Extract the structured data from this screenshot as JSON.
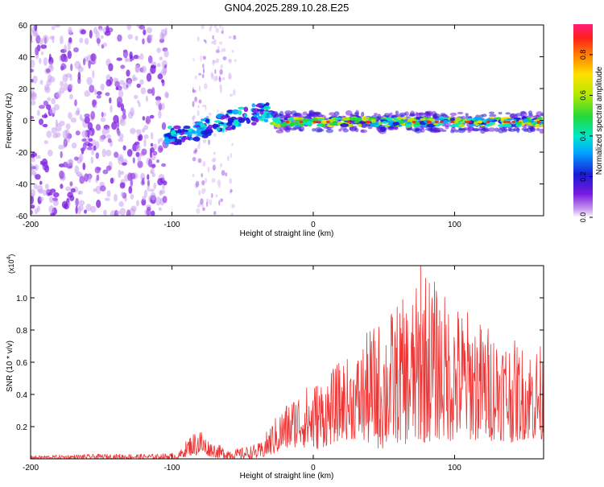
{
  "figure_title": "GN04.2025.289.10.28.E25",
  "colors": {
    "signal_line": "#ee3333",
    "axes": "#000000",
    "background": "#ffffff"
  },
  "chart_data": [
    {
      "type": "heatmap",
      "title": "GN04.2025.289.10.28.E25",
      "xlabel": "Height of straight line (km)",
      "ylabel": "Frequency (Hz)",
      "xlim": [
        -200,
        163
      ],
      "ylim": [
        -60,
        60
      ],
      "x_ticks": [
        -200,
        -100,
        0,
        100
      ],
      "y_ticks": [
        -60,
        -40,
        -20,
        0,
        20,
        40,
        60
      ],
      "tick_labels_x": [
        "-200",
        "-100",
        "0",
        "100"
      ],
      "tick_labels_y": [
        "-60",
        "-40",
        "-20",
        "0",
        "20",
        "40",
        "60"
      ],
      "colorbar": {
        "label": "Normalized spectral amplitude",
        "range": [
          0,
          0.95
        ],
        "ticks": [
          0,
          0.2,
          0.4,
          0.6,
          0.8
        ],
        "tick_labels": [
          "0.0",
          "0.2",
          "0.4",
          "0.6",
          "0.8"
        ]
      },
      "regions": [
        {
          "name": "scattered noise",
          "x_range": [
            -200,
            -103
          ],
          "y_range": [
            -60,
            60
          ],
          "amplitude": 0.08
        },
        {
          "name": "faint vertical band",
          "x_range": [
            -85,
            -55
          ],
          "y_range": [
            -60,
            60
          ],
          "amplitude": 0.04
        },
        {
          "name": "rising tilted features",
          "x_range": [
            -105,
            -28
          ],
          "y_range": [
            -12,
            16
          ],
          "amplitude": 0.4
        },
        {
          "name": "horizontal signal band",
          "x_range": [
            -28,
            163
          ],
          "y_range": [
            -6,
            4
          ],
          "amplitude": 0.7
        }
      ]
    },
    {
      "type": "line",
      "xlabel": "Height of straight line (km)",
      "ylabel": "SNR (10 * v/v)",
      "y_scale_label": "(x10",
      "y_scale_exp": "4",
      "xlim": [
        -200,
        163
      ],
      "ylim": [
        0,
        1.2
      ],
      "x_ticks": [
        -200,
        -100,
        0,
        100
      ],
      "y_ticks": [
        0.2,
        0.4,
        0.6,
        0.8,
        1.0
      ],
      "tick_labels_x": [
        "-200",
        "-100",
        "0",
        "100"
      ],
      "tick_labels_y": [
        "0.2",
        "0.4",
        "0.6",
        "0.8",
        "1.0"
      ],
      "series": [
        {
          "name": "SNR",
          "color": "#ee3333",
          "envelope_x": [
            -200,
            -150,
            -110,
            -95,
            -88,
            -80,
            -75,
            -65,
            -55,
            -37,
            -30,
            -20,
            -10,
            0,
            10,
            20,
            30,
            40,
            50,
            60,
            70,
            80,
            90,
            100,
            110,
            120,
            130,
            140,
            150,
            160,
            163
          ],
          "envelope_low": [
            0.0,
            0.0,
            0.0,
            0.0,
            0.02,
            0.02,
            0.02,
            0.0,
            0.0,
            0.0,
            0.02,
            0.05,
            0.08,
            0.05,
            0.08,
            0.12,
            0.12,
            0.08,
            0.05,
            0.1,
            0.08,
            0.1,
            0.12,
            0.1,
            0.12,
            0.1,
            0.12,
            0.1,
            0.12,
            0.1,
            0.1
          ],
          "envelope_high": [
            0.02,
            0.03,
            0.03,
            0.04,
            0.14,
            0.2,
            0.12,
            0.08,
            0.06,
            0.1,
            0.22,
            0.34,
            0.43,
            0.48,
            0.52,
            0.62,
            0.64,
            0.82,
            0.88,
            0.98,
            1.02,
            1.2,
            1.05,
            0.98,
            0.93,
            0.85,
            0.82,
            0.75,
            0.7,
            0.72,
            0.68
          ],
          "peak": {
            "x": 76,
            "y": 1.2
          }
        }
      ]
    }
  ]
}
